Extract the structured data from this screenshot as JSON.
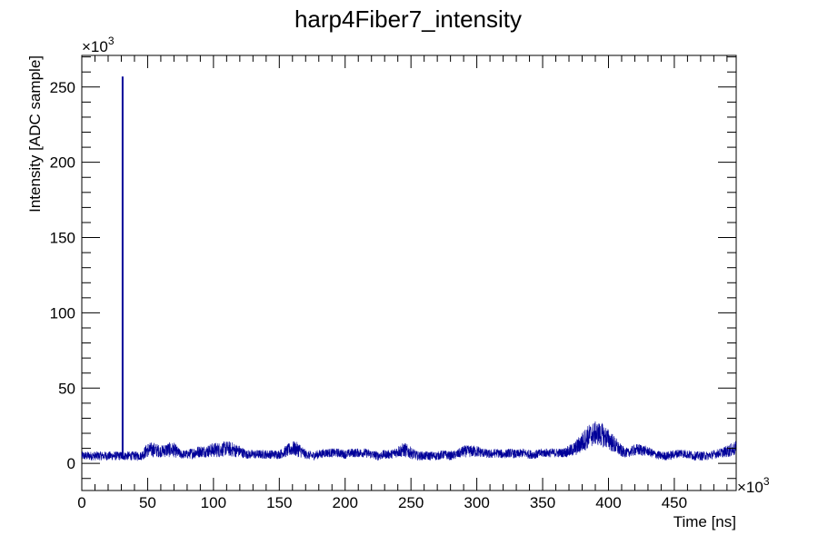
{
  "chart_data": {
    "type": "line",
    "title": "harp4Fiber7_intensity",
    "xlabel": "Time [ns]",
    "ylabel": "Intensity [ADC sample]",
    "x_multiplier": "×10",
    "x_multiplier_exp": "3",
    "y_multiplier": "×10",
    "y_multiplier_exp": "3",
    "xlim": [
      0,
      497
    ],
    "ylim": [
      -18,
      271
    ],
    "x_ticks": [
      0,
      50,
      100,
      150,
      200,
      250,
      300,
      350,
      400,
      450
    ],
    "x_tick_labels": [
      "0",
      "50",
      "100",
      "150",
      "200",
      "250",
      "300",
      "350",
      "400",
      "450"
    ],
    "y_ticks": [
      0,
      50,
      100,
      150,
      200,
      250
    ],
    "y_tick_labels": [
      "0",
      "50",
      "100",
      "150",
      "200",
      "250"
    ],
    "grid": false,
    "colors": {
      "series": "#000099"
    },
    "series": [
      {
        "x": [
          0,
          10,
          20,
          30,
          31,
          32,
          40,
          45,
          50,
          55,
          60,
          65,
          70,
          75,
          80,
          85,
          90,
          95,
          100,
          105,
          110,
          115,
          120,
          125,
          130,
          135,
          140,
          145,
          150,
          155,
          160,
          165,
          170,
          175,
          180,
          185,
          190,
          195,
          200,
          205,
          210,
          215,
          220,
          225,
          230,
          235,
          240,
          245,
          250,
          255,
          260,
          265,
          270,
          275,
          280,
          285,
          290,
          295,
          300,
          305,
          310,
          315,
          320,
          325,
          330,
          335,
          340,
          345,
          350,
          355,
          360,
          365,
          370,
          375,
          380,
          385,
          390,
          395,
          400,
          405,
          410,
          415,
          420,
          425,
          430,
          435,
          440,
          445,
          450,
          455,
          460,
          465,
          470,
          475,
          480,
          485,
          490,
          497
        ],
        "y": [
          5,
          5,
          5,
          5,
          257,
          5,
          5,
          5,
          9,
          9,
          8,
          9,
          9,
          6,
          6,
          7,
          8,
          8,
          9,
          9,
          10,
          9,
          8,
          6,
          6,
          6,
          6,
          6,
          6,
          8,
          10,
          9,
          6,
          5,
          6,
          7,
          7,
          7,
          6,
          7,
          7,
          7,
          6,
          5,
          6,
          6,
          8,
          9,
          7,
          5,
          5,
          5,
          5,
          6,
          5,
          6,
          8,
          8,
          8,
          7,
          6,
          7,
          6,
          7,
          6,
          7,
          6,
          6,
          7,
          7,
          7,
          7,
          8,
          10,
          14,
          18,
          20,
          19,
          16,
          12,
          8,
          7,
          9,
          9,
          8,
          6,
          5,
          5,
          6,
          7,
          6,
          5,
          5,
          5,
          6,
          7,
          8,
          10
        ],
        "amplitude": [
          3,
          3,
          3,
          3,
          0,
          3,
          3,
          3,
          5,
          5,
          4,
          5,
          5,
          3,
          3,
          4,
          4,
          4,
          5,
          5,
          5,
          5,
          4,
          3,
          3,
          3,
          3,
          3,
          3,
          4,
          5,
          5,
          3,
          3,
          3,
          3,
          3,
          3,
          3,
          3,
          3,
          3,
          3,
          3,
          3,
          3,
          4,
          5,
          4,
          3,
          3,
          3,
          3,
          3,
          3,
          3,
          4,
          4,
          4,
          3,
          3,
          3,
          3,
          3,
          3,
          3,
          3,
          3,
          3,
          3,
          3,
          3,
          4,
          5,
          7,
          8,
          8,
          8,
          7,
          6,
          4,
          3,
          4,
          4,
          3,
          3,
          3,
          3,
          3,
          3,
          3,
          3,
          3,
          3,
          3,
          3,
          4,
          5
        ]
      }
    ]
  }
}
